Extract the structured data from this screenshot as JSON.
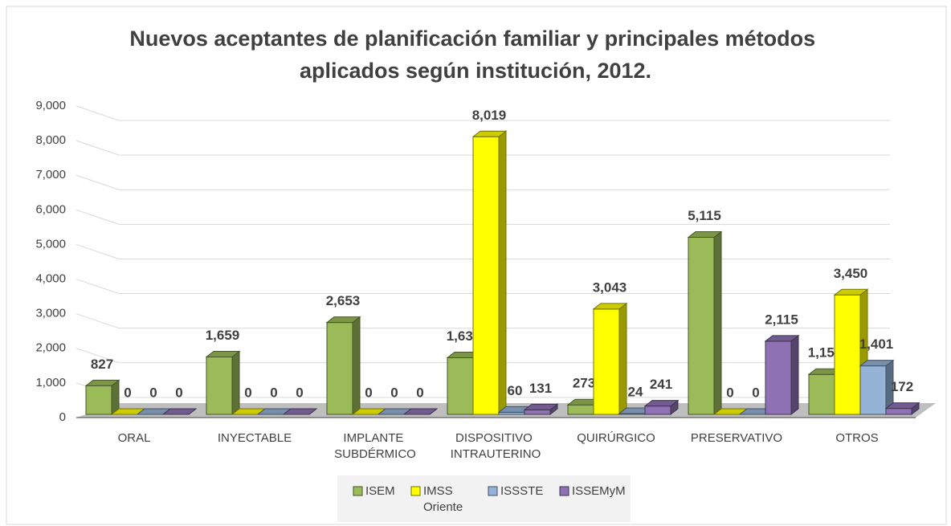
{
  "chart_data": {
    "type": "bar3d",
    "title": "Nuevos aceptantes de planificación familiar y principales métodos aplicados según institución, 2012.",
    "categories": [
      "ORAL",
      "INYECTABLE",
      "IMPLANTE SUBDÉRMICO",
      "DISPOSITIVO INTRAUTERINO",
      "QUIRÚRGICO",
      "PRESERVATIVO",
      "OTROS"
    ],
    "series": [
      {
        "name": "ISEM",
        "color": "#9bbb59",
        "values": [
          827,
          1659,
          2653,
          1636,
          273,
          5115,
          1154
        ],
        "value_labels": [
          "827",
          "1,659",
          "2,653",
          "1,636",
          "273",
          "5,115",
          "1,154"
        ]
      },
      {
        "name": "IMSS Oriente",
        "color": "#ffff00",
        "values": [
          0,
          0,
          0,
          8019,
          3043,
          0,
          3450
        ],
        "value_labels": [
          "0",
          "0",
          "0",
          "8,019",
          "3,043",
          "0",
          "3,450"
        ]
      },
      {
        "name": "ISSSTE",
        "color": "#95b3d7",
        "values": [
          0,
          0,
          0,
          60,
          24,
          0,
          1401
        ],
        "value_labels": [
          "0",
          "0",
          "0",
          "60",
          "24",
          "0",
          "1,401"
        ]
      },
      {
        "name": "ISSEMyM",
        "color": "#8e72b4",
        "values": [
          0,
          0,
          0,
          131,
          241,
          2115,
          172
        ],
        "value_labels": [
          "0",
          "0",
          "0",
          "131",
          "241",
          "2,115",
          "172"
        ]
      }
    ],
    "ylim": [
      0,
      9000
    ],
    "yticks": [
      0,
      {
        "value": 1000,
        "label": "1,000"
      },
      {
        "value": 2000,
        "label": "2,000"
      },
      {
        "value": 3000,
        "label": "3,000"
      },
      {
        "value": 4000,
        "label": "4,000"
      },
      {
        "value": 5000,
        "label": "5,000"
      },
      {
        "value": 6000,
        "label": "6,000"
      },
      {
        "value": 7000,
        "label": "7,000"
      },
      {
        "value": 8000,
        "label": "8,000"
      },
      {
        "value": 9000,
        "label": "9,000"
      }
    ],
    "grid": true
  }
}
